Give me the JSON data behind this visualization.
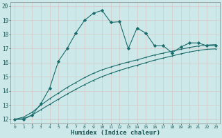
{
  "title": "",
  "xlabel": "Humidex (Indice chaleur)",
  "ylabel": "",
  "bg_color": "#cde8e8",
  "line_color": "#1a6b6b",
  "xlim": [
    -0.5,
    23.5
  ],
  "ylim": [
    11.7,
    20.3
  ],
  "x_ticks": [
    0,
    1,
    2,
    3,
    4,
    5,
    6,
    7,
    8,
    9,
    10,
    11,
    12,
    13,
    14,
    15,
    16,
    17,
    18,
    19,
    20,
    21,
    22,
    23
  ],
  "y_ticks": [
    12,
    13,
    14,
    15,
    16,
    17,
    18,
    19,
    20
  ],
  "jagged_x": [
    0,
    1,
    2,
    3,
    4,
    5,
    6,
    7,
    8,
    9,
    10,
    11,
    12,
    13,
    14,
    15,
    16,
    17,
    18,
    19,
    20,
    21,
    22,
    23
  ],
  "jagged_y": [
    12.0,
    12.0,
    12.3,
    13.1,
    14.2,
    16.1,
    17.0,
    18.1,
    19.0,
    19.5,
    19.7,
    18.85,
    18.9,
    17.0,
    18.45,
    18.1,
    17.2,
    17.2,
    16.7,
    17.1,
    17.4,
    17.4,
    17.2,
    17.2
  ],
  "smooth1_x": [
    0,
    1,
    2,
    3,
    4,
    5,
    6,
    7,
    8,
    9,
    10,
    11,
    12,
    13,
    14,
    15,
    16,
    17,
    18,
    19,
    20,
    21,
    22,
    23
  ],
  "smooth1_y": [
    12.0,
    12.15,
    12.5,
    13.0,
    13.45,
    13.85,
    14.25,
    14.6,
    14.95,
    15.25,
    15.5,
    15.7,
    15.88,
    16.05,
    16.2,
    16.38,
    16.55,
    16.68,
    16.82,
    16.95,
    17.08,
    17.18,
    17.25,
    17.28
  ],
  "smooth2_x": [
    0,
    1,
    2,
    3,
    4,
    5,
    6,
    7,
    8,
    9,
    10,
    11,
    12,
    13,
    14,
    15,
    16,
    17,
    18,
    19,
    20,
    21,
    22,
    23
  ],
  "smooth2_y": [
    12.0,
    12.05,
    12.3,
    12.68,
    13.05,
    13.42,
    13.78,
    14.12,
    14.45,
    14.75,
    15.02,
    15.25,
    15.46,
    15.65,
    15.82,
    16.0,
    16.18,
    16.33,
    16.48,
    16.63,
    16.76,
    16.87,
    16.95,
    16.98
  ]
}
